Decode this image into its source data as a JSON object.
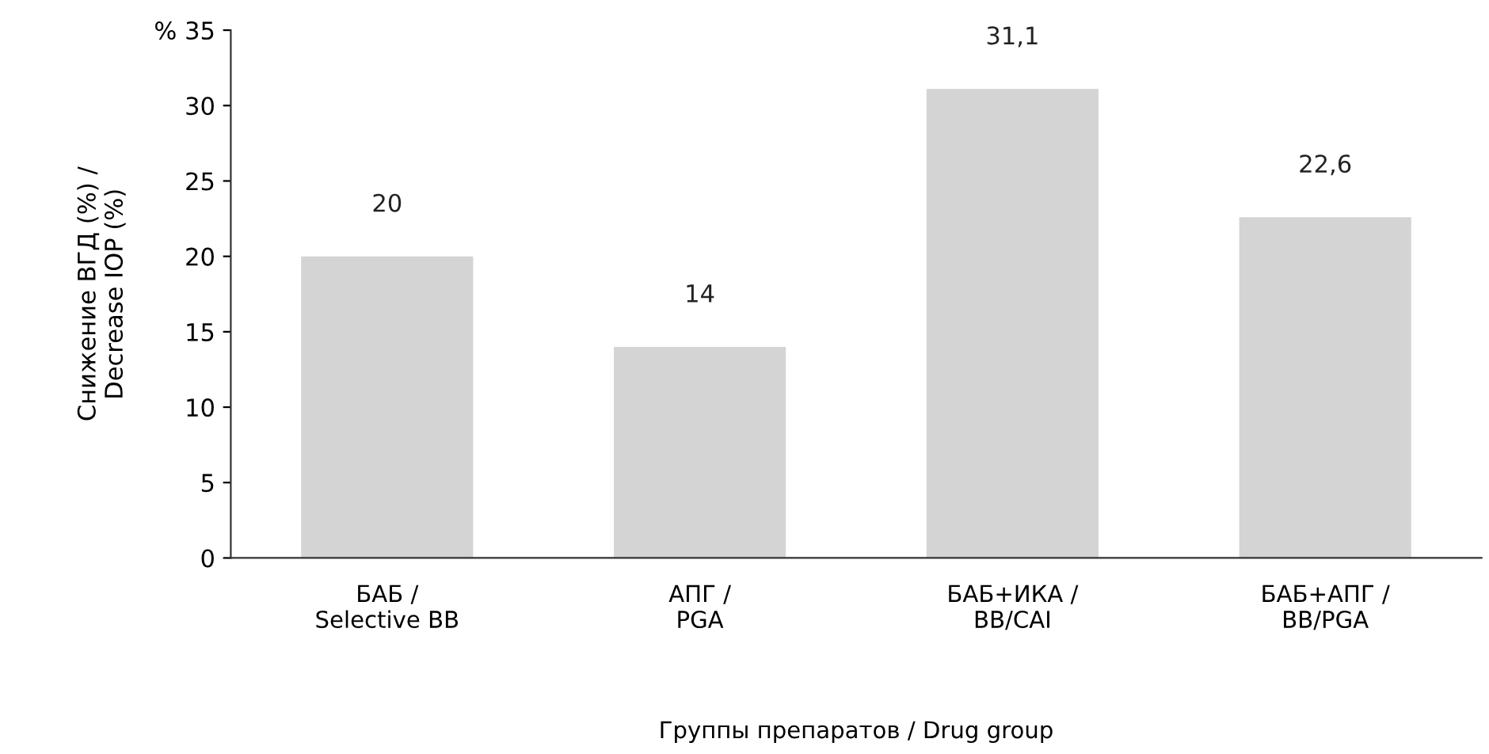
{
  "chart_data": {
    "type": "bar",
    "categories": [
      "БАБ /\nSelective BB",
      "АПГ /\nPGA",
      "БАБ+ИКА /\nBB/CAI",
      "БАБ+АПГ /\nBB/PGA"
    ],
    "values": [
      20,
      14,
      31.1,
      22.6
    ],
    "value_labels": [
      "20",
      "14",
      "31,1",
      "22,6"
    ],
    "color": "#d4d4d4",
    "ylim": [
      0,
      35
    ],
    "yticks": [
      0,
      5,
      10,
      15,
      20,
      25,
      30,
      {
        "value": 35,
        "label": "% 35"
      }
    ],
    "ylabel": "Снижение ВГД (%) /\nDecrease IOP (%)",
    "xlabel": "Группы препаратов / Drug group",
    "grid": false,
    "legend": false
  }
}
